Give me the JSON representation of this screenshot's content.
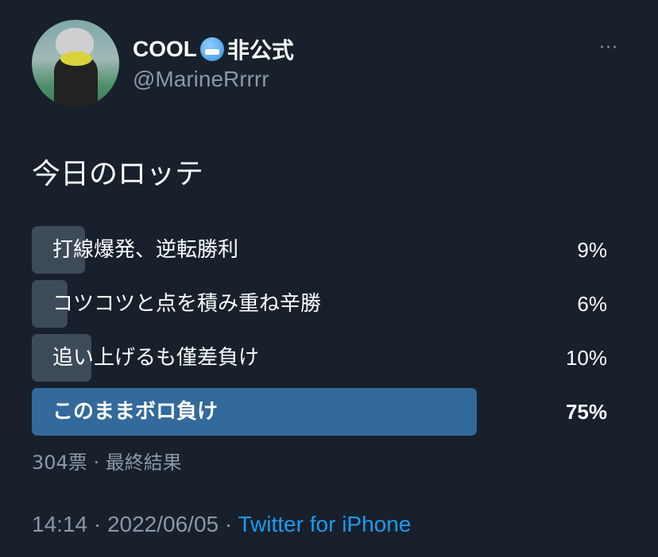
{
  "user": {
    "name": "COOL",
    "name_suffix": "非公式",
    "emoji": "cold-face-emoji",
    "handle": "@MarineRrrrr"
  },
  "more_icon": "···",
  "tweet": {
    "text": "今日のロッテ"
  },
  "poll": {
    "options": [
      {
        "label": "打線爆発、逆転勝利",
        "percent": "9%",
        "value": 9,
        "winner": false
      },
      {
        "label": "コツコツと点を積み重ね辛勝",
        "percent": "6%",
        "value": 6,
        "winner": false
      },
      {
        "label": "追い上げるも僅差負け",
        "percent": "10%",
        "value": 10,
        "winner": false
      },
      {
        "label": "このままボロ負け",
        "percent": "75%",
        "value": 75,
        "winner": true
      }
    ],
    "votes": "304票",
    "status": "最終結果"
  },
  "footer": {
    "time": "14:14",
    "date": "2022/06/05",
    "source": "Twitter for iPhone"
  },
  "colors": {
    "background": "#17202b",
    "bar": "#3d4a59",
    "winner_bar": "#336a9b",
    "link": "#1d9bf0",
    "muted": "#8b98a5"
  }
}
